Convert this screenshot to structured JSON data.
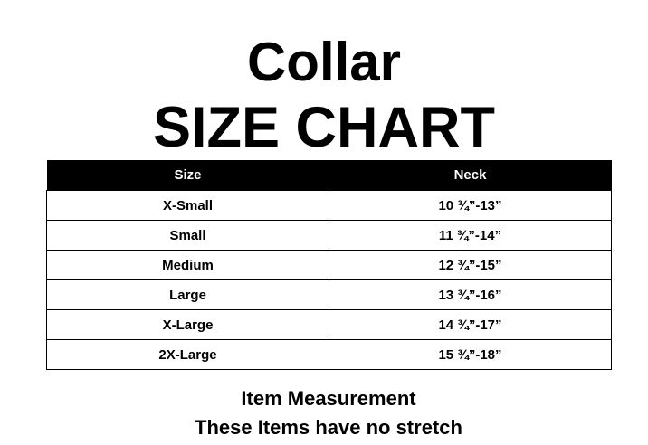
{
  "title": "Collar",
  "subtitle": "SIZE CHART",
  "table": {
    "headers": [
      "Size",
      "Neck"
    ],
    "rows": [
      [
        "X-Small",
        "10 ¾”-13”"
      ],
      [
        "Small",
        "11 ¾”-14”"
      ],
      [
        "Medium",
        "12 ¾”-15”"
      ],
      [
        "Large",
        "13 ¾”-16”"
      ],
      [
        "X-Large",
        "14 ¾”-17”"
      ],
      [
        "2X-Large",
        "15 ¾”-18”"
      ]
    ]
  },
  "footer": {
    "line1": "Item Measurement",
    "line2": "These Items have no stretch"
  }
}
